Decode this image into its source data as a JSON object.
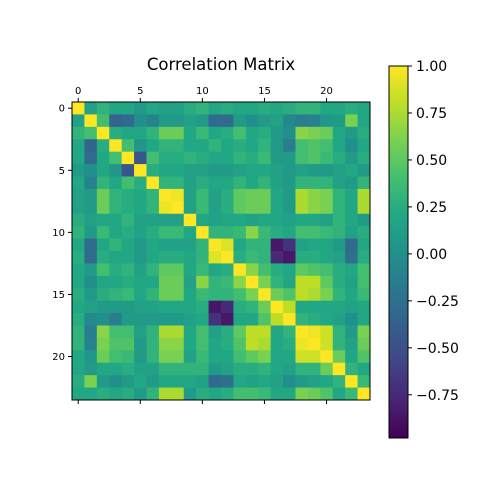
{
  "chart_data": {
    "type": "heatmap",
    "title": "Correlation Matrix",
    "size": 24,
    "x_ticks": [
      "0",
      "5",
      "10",
      "15",
      "20"
    ],
    "x_tick_values": [
      0,
      5,
      10,
      15,
      20
    ],
    "y_ticks": [
      "0",
      "5",
      "10",
      "15",
      "20"
    ],
    "y_tick_values": [
      0,
      5,
      10,
      15,
      20
    ],
    "colorbar": {
      "vmin": -0.98,
      "vmax": 1.0,
      "ticks": [
        1.0,
        0.75,
        0.5,
        0.25,
        0.0,
        -0.25,
        -0.5,
        -0.75
      ],
      "tick_labels": [
        "1.00",
        "0.75",
        "0.50",
        "0.25",
        "0.00",
        "−0.25",
        "−0.50",
        "−0.75"
      ],
      "colormap": "viridis"
    },
    "matrix": [
      [
        1.0,
        0.15,
        0.3,
        0.2,
        0.2,
        0.1,
        0.2,
        0.15,
        0.15,
        0.25,
        0.3,
        0.2,
        0.25,
        0.2,
        0.2,
        0.25,
        0.2,
        0.25,
        0.3,
        0.3,
        0.2,
        0.2,
        0.25,
        0.2
      ],
      [
        0.15,
        1.0,
        0.4,
        -0.35,
        -0.3,
        0.0,
        -0.1,
        0.1,
        0.1,
        0.15,
        0.1,
        -0.3,
        -0.3,
        0.1,
        0.0,
        0.1,
        0.15,
        -0.05,
        -0.15,
        -0.1,
        0.05,
        0.1,
        0.6,
        0.2
      ],
      [
        0.3,
        0.4,
        1.0,
        0.25,
        0.2,
        0.2,
        0.3,
        0.55,
        0.55,
        0.2,
        0.35,
        0.2,
        0.25,
        0.4,
        0.2,
        0.25,
        0.1,
        0.0,
        0.65,
        0.6,
        0.55,
        0.2,
        0.1,
        0.25
      ],
      [
        0.2,
        -0.35,
        0.25,
        1.0,
        0.4,
        0.05,
        0.2,
        0.3,
        0.3,
        0.2,
        0.2,
        0.3,
        0.2,
        0.25,
        0.2,
        0.3,
        0.1,
        -0.15,
        0.4,
        0.45,
        0.4,
        0.2,
        0.0,
        0.2
      ],
      [
        0.2,
        -0.3,
        0.2,
        0.4,
        1.0,
        -0.45,
        0.4,
        0.25,
        0.25,
        0.3,
        0.25,
        0.2,
        0.2,
        0.3,
        0.25,
        0.35,
        0.1,
        0.1,
        0.4,
        0.45,
        0.35,
        0.25,
        0.1,
        0.25
      ],
      [
        0.1,
        0.0,
        0.2,
        0.05,
        -0.45,
        1.0,
        0.25,
        0.2,
        0.2,
        0.15,
        0.15,
        0.1,
        0.1,
        0.15,
        0.2,
        0.2,
        0.15,
        0.1,
        0.15,
        0.1,
        0.1,
        0.15,
        0.2,
        0.1
      ],
      [
        0.2,
        -0.1,
        0.3,
        0.2,
        0.4,
        0.25,
        1.0,
        0.3,
        0.3,
        0.15,
        0.25,
        0.2,
        0.2,
        0.3,
        0.2,
        0.3,
        0.15,
        0.1,
        0.3,
        0.3,
        0.3,
        0.15,
        0.1,
        0.3
      ],
      [
        0.15,
        0.1,
        0.55,
        0.3,
        0.25,
        0.2,
        0.3,
        1.0,
        0.95,
        0.15,
        0.35,
        0.15,
        0.25,
        0.5,
        0.55,
        0.55,
        0.2,
        0.1,
        0.75,
        0.65,
        0.6,
        0.3,
        0.2,
        0.75
      ],
      [
        0.15,
        0.1,
        0.55,
        0.3,
        0.25,
        0.2,
        0.3,
        0.95,
        1.0,
        0.15,
        0.35,
        0.15,
        0.25,
        0.5,
        0.55,
        0.55,
        0.2,
        0.1,
        0.75,
        0.65,
        0.6,
        0.3,
        0.2,
        0.75
      ],
      [
        0.25,
        0.15,
        0.2,
        0.2,
        0.3,
        0.15,
        0.15,
        0.15,
        0.15,
        1.0,
        0.2,
        0.15,
        0.2,
        0.2,
        0.15,
        0.2,
        0.2,
        0.15,
        0.2,
        0.2,
        0.15,
        0.3,
        0.2,
        0.1
      ],
      [
        0.3,
        0.1,
        0.35,
        0.2,
        0.25,
        0.15,
        0.25,
        0.35,
        0.35,
        0.2,
        1.0,
        0.3,
        0.3,
        0.35,
        0.65,
        0.35,
        0.25,
        0.2,
        0.4,
        0.4,
        0.35,
        0.3,
        0.15,
        0.25
      ],
      [
        0.2,
        -0.3,
        0.2,
        0.3,
        0.2,
        0.1,
        0.2,
        0.15,
        0.15,
        0.15,
        0.3,
        1.0,
        0.9,
        0.2,
        0.3,
        0.3,
        -0.85,
        -0.7,
        0.15,
        0.2,
        0.2,
        0.1,
        -0.3,
        0.2
      ],
      [
        0.25,
        -0.3,
        0.25,
        0.2,
        0.2,
        0.1,
        0.2,
        0.25,
        0.25,
        0.2,
        0.3,
        0.9,
        1.0,
        0.25,
        0.35,
        0.3,
        -0.75,
        -0.85,
        0.25,
        0.25,
        0.2,
        0.15,
        -0.25,
        0.25
      ],
      [
        0.2,
        0.1,
        0.4,
        0.25,
        0.3,
        0.15,
        0.3,
        0.5,
        0.5,
        0.2,
        0.35,
        0.2,
        0.25,
        1.0,
        0.65,
        0.4,
        0.25,
        0.2,
        0.5,
        0.45,
        0.4,
        0.25,
        0.2,
        0.4
      ],
      [
        0.2,
        0.0,
        0.2,
        0.2,
        0.25,
        0.2,
        0.2,
        0.55,
        0.55,
        0.15,
        0.65,
        0.3,
        0.35,
        0.65,
        1.0,
        0.6,
        0.3,
        0.2,
        0.8,
        0.8,
        0.5,
        0.25,
        0.15,
        0.4
      ],
      [
        0.25,
        0.1,
        0.25,
        0.3,
        0.35,
        0.2,
        0.3,
        0.55,
        0.55,
        0.2,
        0.35,
        0.3,
        0.3,
        0.4,
        0.6,
        1.0,
        0.55,
        0.45,
        0.8,
        0.75,
        0.6,
        0.3,
        0.2,
        0.35
      ],
      [
        0.2,
        0.15,
        0.1,
        0.1,
        0.1,
        0.15,
        0.15,
        0.2,
        0.2,
        0.2,
        0.25,
        -0.85,
        -0.75,
        0.25,
        0.3,
        0.55,
        1.0,
        0.8,
        0.2,
        0.2,
        0.2,
        0.2,
        0.15,
        0.2
      ],
      [
        0.25,
        -0.05,
        0.0,
        -0.15,
        0.1,
        0.1,
        0.1,
        0.1,
        0.1,
        0.15,
        0.2,
        -0.7,
        -0.85,
        0.2,
        0.2,
        0.45,
        0.8,
        1.0,
        0.3,
        0.25,
        0.2,
        0.15,
        0.0,
        0.2
      ],
      [
        0.3,
        -0.15,
        0.65,
        0.4,
        0.4,
        0.15,
        0.3,
        0.75,
        0.75,
        0.2,
        0.4,
        0.15,
        0.25,
        0.5,
        0.8,
        0.8,
        0.2,
        0.3,
        1.0,
        0.95,
        0.85,
        0.3,
        0.1,
        0.6
      ],
      [
        0.3,
        -0.1,
        0.6,
        0.45,
        0.45,
        0.1,
        0.3,
        0.65,
        0.65,
        0.2,
        0.4,
        0.2,
        0.25,
        0.45,
        0.8,
        0.75,
        0.2,
        0.25,
        0.95,
        1.0,
        0.85,
        0.3,
        0.15,
        0.55
      ],
      [
        0.2,
        0.05,
        0.55,
        0.4,
        0.35,
        0.1,
        0.3,
        0.6,
        0.6,
        0.15,
        0.35,
        0.2,
        0.2,
        0.4,
        0.5,
        0.6,
        0.2,
        0.2,
        0.85,
        0.85,
        1.0,
        0.55,
        0.2,
        0.45
      ],
      [
        0.2,
        0.1,
        0.2,
        0.2,
        0.25,
        0.15,
        0.15,
        0.3,
        0.3,
        0.3,
        0.3,
        0.1,
        0.15,
        0.25,
        0.25,
        0.3,
        0.2,
        0.15,
        0.3,
        0.3,
        0.55,
        1.0,
        0.3,
        0.2
      ],
      [
        0.25,
        0.6,
        0.1,
        0.0,
        0.1,
        0.2,
        0.1,
        0.2,
        0.2,
        0.2,
        0.15,
        -0.3,
        -0.25,
        0.2,
        0.15,
        0.2,
        0.15,
        0.0,
        0.1,
        0.15,
        0.2,
        0.3,
        1.0,
        0.35
      ],
      [
        0.2,
        0.2,
        0.25,
        0.2,
        0.25,
        0.1,
        0.3,
        0.75,
        0.75,
        0.1,
        0.25,
        0.2,
        0.25,
        0.4,
        0.4,
        0.35,
        0.2,
        0.2,
        0.6,
        0.55,
        0.45,
        0.2,
        0.35,
        1.0
      ]
    ]
  }
}
